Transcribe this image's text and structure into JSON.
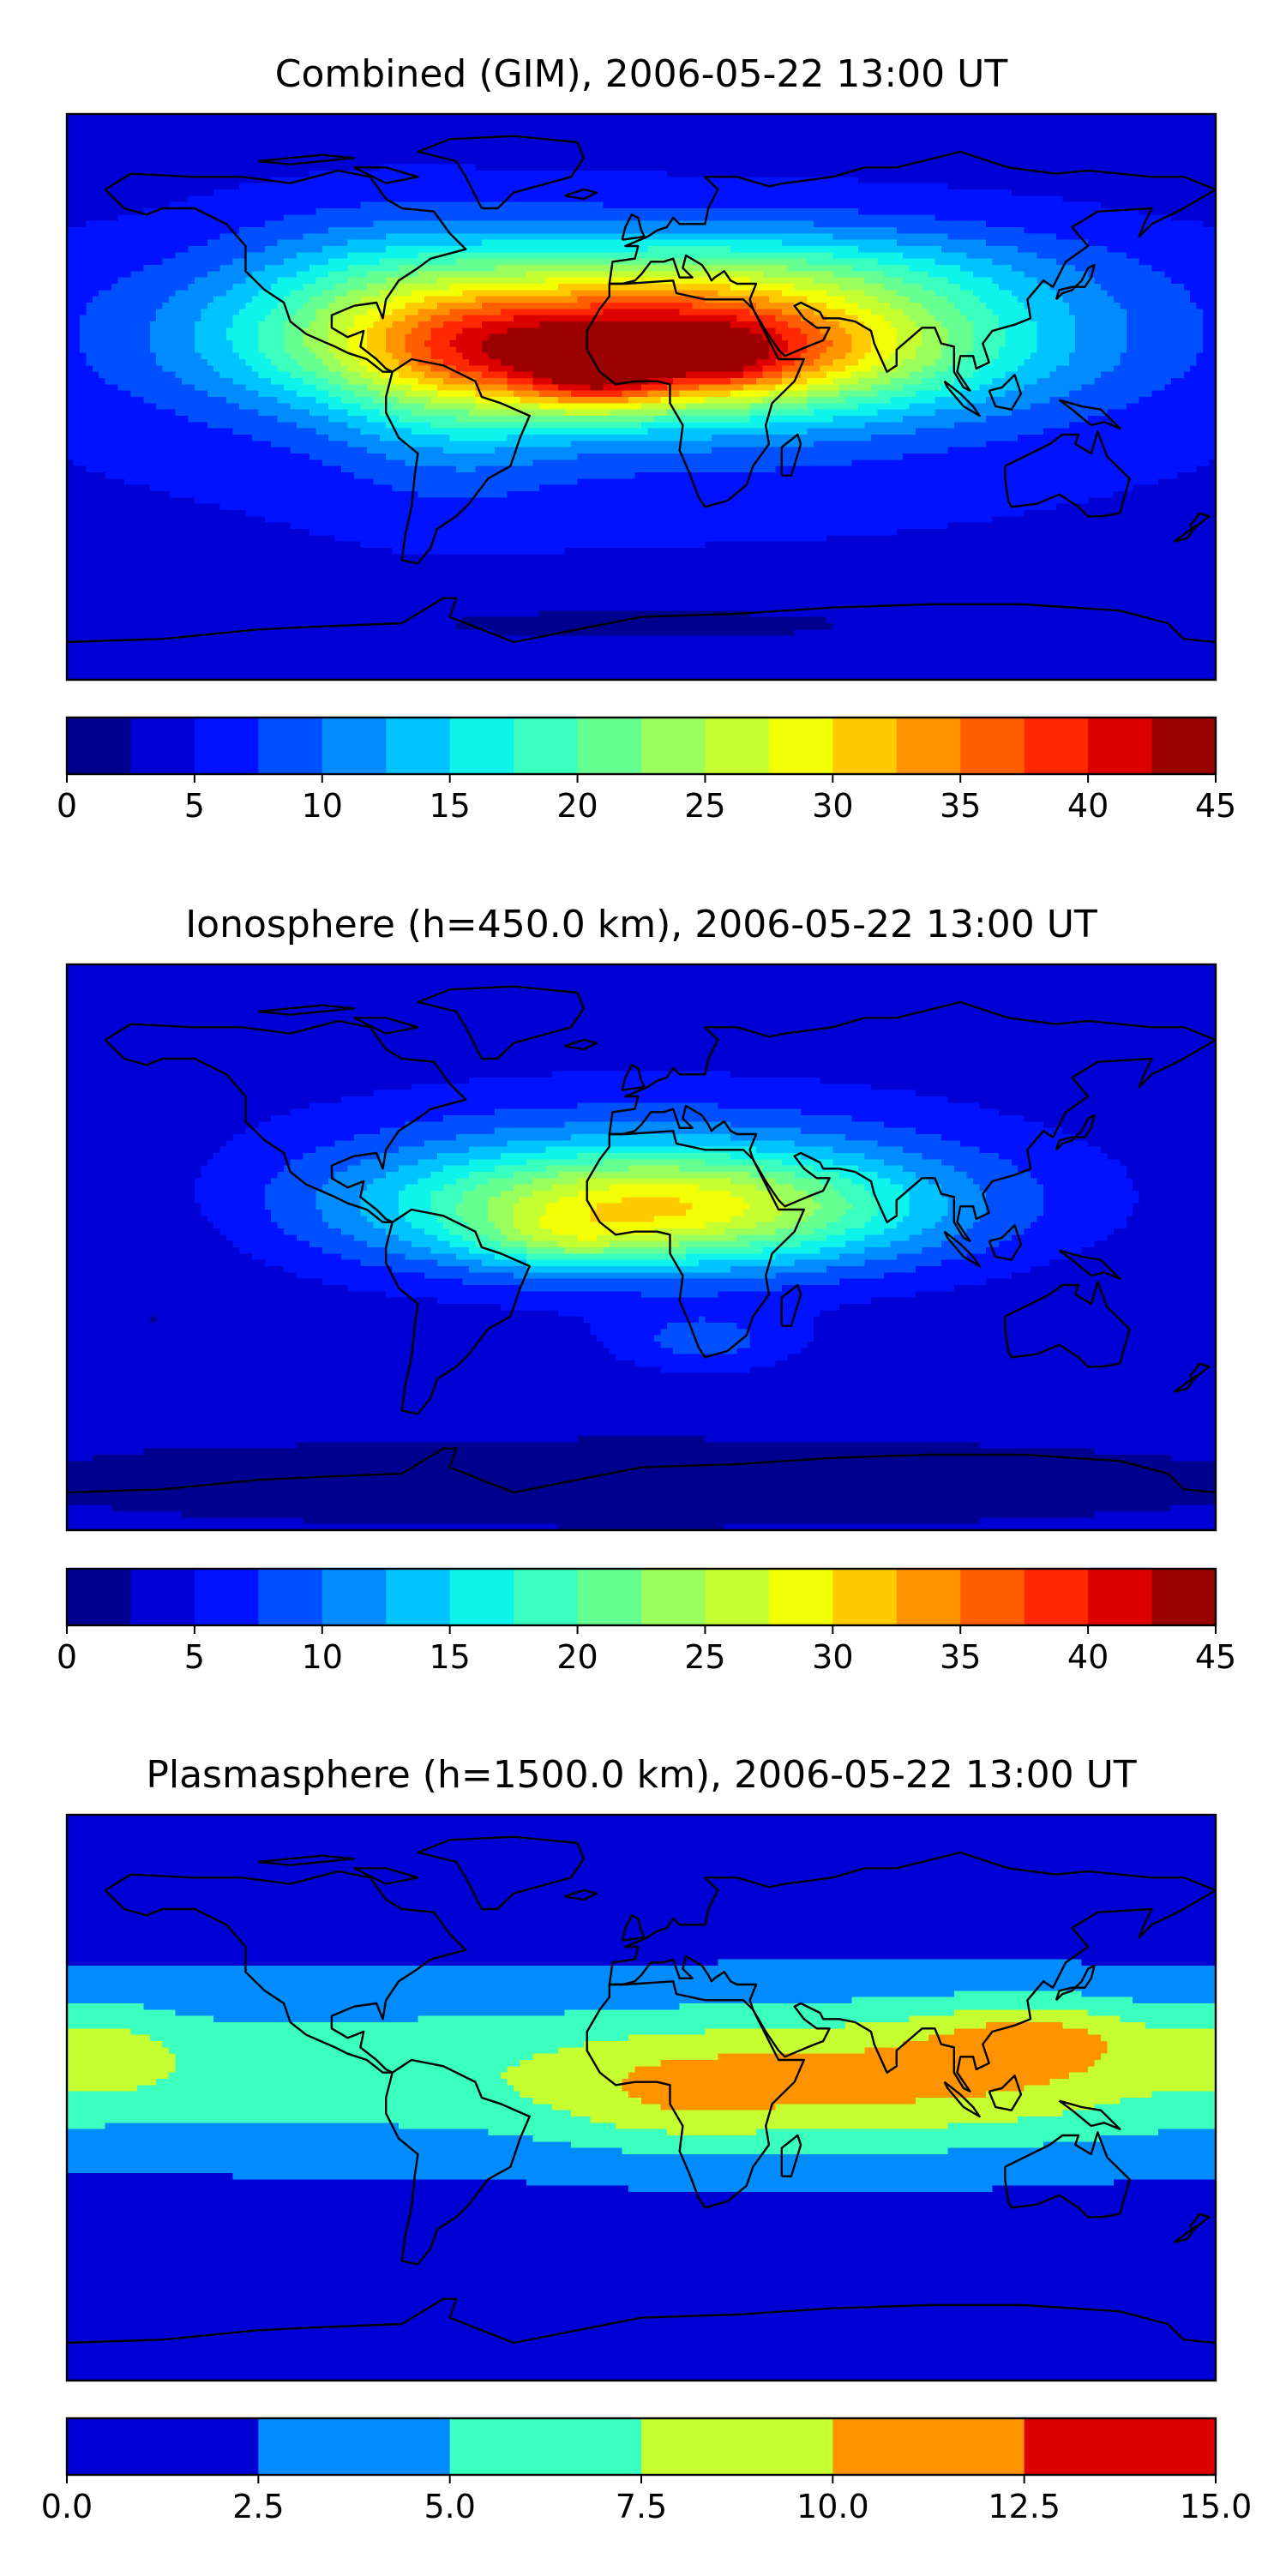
{
  "chart_data": [
    {
      "type": "heatmap",
      "title": "Combined (GIM), 2006-05-22 13:00 UT",
      "projection": "plate-carree",
      "lon_range": [
        -180,
        180
      ],
      "lat_range": [
        -90,
        90
      ],
      "colormap": "jet",
      "colorbar": {
        "levels": [
          0,
          2.5,
          5,
          7.5,
          10,
          12.5,
          15,
          17.5,
          20,
          22.5,
          25,
          27.5,
          30,
          32.5,
          35,
          37.5,
          40,
          42.5,
          45
        ],
        "colors": [
          "#00008f",
          "#0000d4",
          "#0012ff",
          "#0050ff",
          "#008cff",
          "#00c4ff",
          "#0ff4ea",
          "#3affbe",
          "#66ff91",
          "#9aff5d",
          "#c6ff31",
          "#f2ff05",
          "#ffcb00",
          "#ff9400",
          "#ff5f00",
          "#ff2800",
          "#dc0000",
          "#9a0000"
        ],
        "tick_values": [
          0,
          5,
          10,
          15,
          20,
          25,
          30,
          35,
          40,
          45
        ],
        "tick_labels": [
          "0",
          "5",
          "10",
          "15",
          "20",
          "25",
          "30",
          "35",
          "40",
          "45"
        ]
      },
      "field": {
        "background": 4,
        "features": [
          {
            "lon": 0,
            "lat": 15,
            "rlon": 95,
            "rlat": 20,
            "value": 28
          },
          {
            "lon": -15,
            "lat": 5,
            "rlon": 22,
            "rlat": 10,
            "value": 9
          },
          {
            "lon": 28,
            "lat": 12,
            "rlon": 12,
            "rlat": 8,
            "value": 3
          },
          {
            "lon": 22,
            "lat": 12,
            "rlon": 32,
            "rlat": 12,
            "value": 3
          },
          {
            "lon": 0,
            "lat": 25,
            "rlon": 130,
            "rlat": 28,
            "value": 12
          },
          {
            "lon": 40,
            "lat": 40,
            "rlon": 90,
            "rlat": 15,
            "value": 6
          },
          {
            "lon": -80,
            "lat": 35,
            "rlon": 50,
            "rlat": 25,
            "value": 5
          },
          {
            "lon": -60,
            "lat": 0,
            "rlon": 35,
            "rlat": 30,
            "value": 5
          },
          {
            "lon": 0,
            "lat": -5,
            "rlon": 170,
            "rlat": 40,
            "value": 3
          },
          {
            "lon": 0,
            "lat": -72,
            "rlon": 140,
            "rlat": 10,
            "value": -2
          }
        ]
      },
      "units_note": ""
    },
    {
      "type": "heatmap",
      "title": "Ionosphere  (h=450.0 km), 2006-05-22 13:00 UT",
      "projection": "plate-carree",
      "lon_range": [
        -180,
        180
      ],
      "lat_range": [
        -90,
        90
      ],
      "colormap": "jet",
      "colorbar": {
        "levels": [
          0,
          2.5,
          5,
          7.5,
          10,
          12.5,
          15,
          17.5,
          20,
          22.5,
          25,
          27.5,
          30,
          32.5,
          35,
          37.5,
          40,
          42.5,
          45
        ],
        "colors": [
          "#00008f",
          "#0000d4",
          "#0012ff",
          "#0050ff",
          "#008cff",
          "#00c4ff",
          "#0ff4ea",
          "#3affbe",
          "#66ff91",
          "#9aff5d",
          "#c6ff31",
          "#f2ff05",
          "#ffcb00",
          "#ff9400",
          "#ff5f00",
          "#ff2800",
          "#dc0000",
          "#9a0000"
        ],
        "tick_values": [
          0,
          5,
          10,
          15,
          20,
          25,
          30,
          35,
          40,
          45
        ],
        "tick_labels": [
          "0",
          "5",
          "10",
          "15",
          "20",
          "25",
          "30",
          "35",
          "40",
          "45"
        ]
      },
      "field": {
        "background": 3,
        "features": [
          {
            "lon": 5,
            "lat": 12,
            "rlon": 80,
            "rlat": 18,
            "value": 20
          },
          {
            "lon": -25,
            "lat": 2,
            "rlon": 25,
            "rlat": 8,
            "value": 5
          },
          {
            "lon": 0,
            "lat": 20,
            "rlon": 120,
            "rlat": 30,
            "value": 8
          },
          {
            "lon": 20,
            "lat": -30,
            "rlon": 30,
            "rlat": 10,
            "value": 5
          },
          {
            "lon": -150,
            "lat": 0,
            "rlon": 30,
            "rlat": 40,
            "value": -1
          },
          {
            "lon": 0,
            "lat": -75,
            "rlon": 170,
            "rlat": 12,
            "value": -2
          }
        ]
      },
      "units_note": ""
    },
    {
      "type": "heatmap",
      "title": "Plasmasphere (h=1500.0 km), 2006-05-22 13:00 UT",
      "projection": "plate-carree",
      "lon_range": [
        -180,
        180
      ],
      "lat_range": [
        -90,
        90
      ],
      "colormap": "jet",
      "colorbar": {
        "levels": [
          0,
          2.5,
          5,
          7.5,
          10,
          12.5,
          15
        ],
        "colors": [
          "#0000d4",
          "#008cff",
          "#3affbe",
          "#c6ff31",
          "#ff9400",
          "#dc0000"
        ],
        "tick_values": [
          0,
          2.5,
          5,
          7.5,
          10,
          12.5,
          15
        ],
        "tick_labels": [
          "0.0",
          "2.5",
          "5.0",
          "7.5",
          "10.0",
          "12.5",
          "15.0"
        ]
      },
      "field": {
        "background": 1.5,
        "features": [
          {
            "lon": 0,
            "lat": 8,
            "rlon": 400,
            "rlat": 26,
            "value": 5.5
          },
          {
            "lon": 85,
            "lat": 5,
            "rlon": 70,
            "rlat": 22,
            "value": 4
          },
          {
            "lon": 10,
            "lat": 0,
            "rlon": 40,
            "rlat": 18,
            "value": 3
          },
          {
            "lon": -170,
            "lat": 15,
            "rlon": 25,
            "rlat": 15,
            "value": 3
          },
          {
            "lon": 125,
            "lat": 20,
            "rlon": 35,
            "rlat": 12,
            "value": 4
          }
        ]
      },
      "units_note": ""
    }
  ]
}
